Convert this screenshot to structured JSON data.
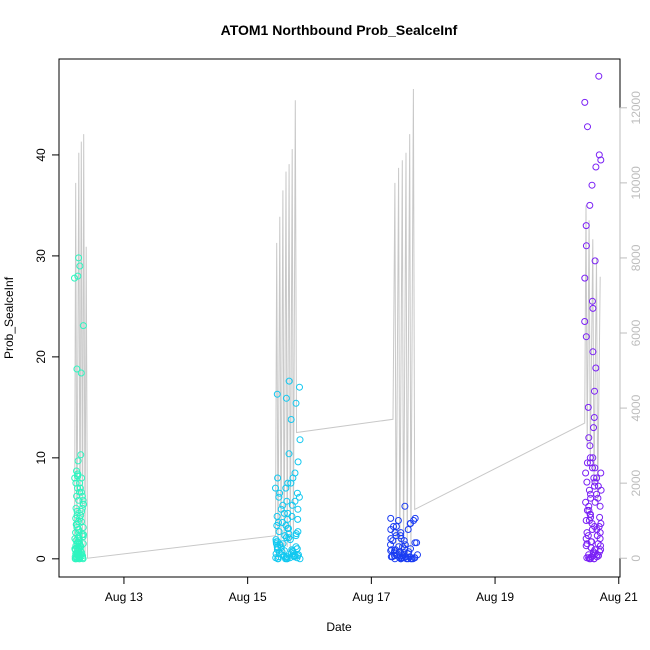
{
  "chart_data": {
    "type": "scatter",
    "title": "ATOM1 Northbound Prob_SealceInf",
    "xlabel": "Date",
    "ylabel": "Prob_SealceInf",
    "x_ticks": [
      {
        "day": 13,
        "label": "Aug 13"
      },
      {
        "day": 15,
        "label": "Aug 15"
      },
      {
        "day": 17,
        "label": "Aug 17"
      },
      {
        "day": 19,
        "label": "Aug 19"
      },
      {
        "day": 21,
        "label": "Aug 21"
      }
    ],
    "xlim_days": [
      11.95,
      21.02
    ],
    "ylim": [
      -1.8,
      49.5
    ],
    "y_ticks": [
      0,
      10,
      20,
      30,
      40
    ],
    "y2_ticks": [
      0,
      2000,
      4000,
      6000,
      8000,
      10000,
      12000
    ],
    "y2lim": [
      -500,
      13300
    ],
    "grid": false,
    "colors": {
      "group1": "#2ff5c0",
      "group2": "#12c8f0",
      "group3": "#1a3cf2",
      "group4": "#7a20f5",
      "secondary_line": "#c8c8c8"
    },
    "series": [
      {
        "x_start_day": 12.2,
        "x_end_day": 12.35,
        "low_values": [
          0,
          0,
          0,
          0.1,
          0.1,
          0.2,
          0.2,
          0.3,
          0.4,
          0.5,
          0.5,
          0.6,
          0.8,
          0.9,
          1.0,
          1.1,
          1.2,
          1.3,
          1.5,
          1.6,
          1.8,
          2.0,
          2.2,
          2.4,
          2.6,
          2.9,
          3.1,
          3.4,
          3.7,
          4.0,
          4.3,
          4.7,
          5.0,
          5.4,
          5.8,
          6.2,
          6.6,
          7.0,
          7.5,
          8.0,
          8.2,
          8.4
        ],
        "high_values": [
          8.7,
          9.7,
          10.3,
          18.4,
          18.8,
          23.1,
          27.8,
          28.0,
          29.0,
          29.8
        ]
      },
      {
        "x_start_day": 15.45,
        "x_end_day": 15.85,
        "low_values": [
          0,
          0,
          0,
          0.1,
          0.1,
          0.2,
          0.2,
          0.3,
          0.3,
          0.4,
          0.5,
          0.6,
          0.7,
          0.8,
          0.9,
          1.0,
          1.1,
          1.2,
          1.4,
          1.5,
          1.7,
          1.9,
          2.1,
          2.3,
          2.5,
          2.7,
          3.0,
          3.3,
          3.6,
          3.9,
          4.2,
          4.5,
          4.9,
          5.3,
          5.7,
          6.1,
          6.5,
          7.0,
          7.5,
          8.0
        ],
        "high_values": [
          8.5,
          9.6,
          10.4,
          11.8,
          13.8,
          15.4,
          15.9,
          16.3,
          17.0,
          17.6
        ]
      },
      {
        "x_start_day": 17.3,
        "x_end_day": 17.75,
        "low_values": [
          0,
          0,
          0,
          0,
          0.1,
          0.1,
          0.1,
          0.2,
          0.2,
          0.3,
          0.3,
          0.4,
          0.5,
          0.6,
          0.7,
          0.8,
          0.9,
          1.0,
          1.2,
          1.4,
          1.6,
          1.8,
          2.0,
          2.3,
          2.6,
          2.9,
          3.2,
          3.5,
          3.8,
          4.0
        ],
        "high_values": [
          5.2
        ]
      },
      {
        "x_start_day": 20.45,
        "x_end_day": 20.72,
        "low_values": [
          0,
          0,
          0.1,
          0.2,
          0.3,
          0.4,
          0.5,
          0.7,
          0.9,
          1.1,
          1.3,
          1.5,
          1.7,
          2.0,
          2.3,
          2.6,
          2.9,
          3.2,
          3.5,
          3.8,
          4.1,
          4.4,
          4.8,
          5.2,
          5.6,
          6.0,
          6.4,
          6.8,
          7.2,
          7.6,
          8.0,
          8.5,
          9.0,
          9.5,
          10.0
        ],
        "high_values": [
          11.2,
          12.0,
          13.0,
          14.0,
          15.0,
          16.6,
          18.9,
          20.5,
          22.0,
          23.5,
          24.8,
          25.5,
          27.8,
          29.5,
          31.0,
          33.0,
          35.0,
          37.0,
          38.8,
          39.5,
          40.0,
          42.8,
          45.2,
          47.8
        ]
      }
    ],
    "secondary_series": [
      {
        "day": 12.2,
        "value": 0
      },
      {
        "day": 12.22,
        "value": 10000
      },
      {
        "day": 12.24,
        "value": 0
      },
      {
        "day": 12.27,
        "value": 10800
      },
      {
        "day": 12.29,
        "value": 0
      },
      {
        "day": 12.31,
        "value": 11100
      },
      {
        "day": 12.33,
        "value": 200
      },
      {
        "day": 12.35,
        "value": 11300
      },
      {
        "day": 12.37,
        "value": 0
      },
      {
        "day": 12.39,
        "value": 8300
      },
      {
        "day": 12.41,
        "value": 0
      },
      {
        "day": 15.45,
        "value": 600
      },
      {
        "day": 15.47,
        "value": 8400
      },
      {
        "day": 15.49,
        "value": 0
      },
      {
        "day": 15.52,
        "value": 9100
      },
      {
        "day": 15.54,
        "value": 300
      },
      {
        "day": 15.57,
        "value": 9800
      },
      {
        "day": 15.59,
        "value": 0
      },
      {
        "day": 15.62,
        "value": 10300
      },
      {
        "day": 15.64,
        "value": 300
      },
      {
        "day": 15.67,
        "value": 10500
      },
      {
        "day": 15.69,
        "value": 0
      },
      {
        "day": 15.72,
        "value": 10900
      },
      {
        "day": 15.74,
        "value": 500
      },
      {
        "day": 15.77,
        "value": 12200
      },
      {
        "day": 15.79,
        "value": 3350
      },
      {
        "day": 17.35,
        "value": 3700
      },
      {
        "day": 17.38,
        "value": 10000
      },
      {
        "day": 17.4,
        "value": 0
      },
      {
        "day": 17.44,
        "value": 10400
      },
      {
        "day": 17.46,
        "value": 0
      },
      {
        "day": 17.5,
        "value": 10600
      },
      {
        "day": 17.52,
        "value": 0
      },
      {
        "day": 17.56,
        "value": 10800
      },
      {
        "day": 17.58,
        "value": 0
      },
      {
        "day": 17.62,
        "value": 11300
      },
      {
        "day": 17.64,
        "value": 0
      },
      {
        "day": 17.68,
        "value": 12500
      },
      {
        "day": 17.7,
        "value": 1300
      },
      {
        "day": 20.45,
        "value": 3600
      },
      {
        "day": 20.47,
        "value": 9400
      },
      {
        "day": 20.49,
        "value": 3000
      },
      {
        "day": 20.52,
        "value": 9000
      },
      {
        "day": 20.54,
        "value": 2500
      },
      {
        "day": 20.58,
        "value": 8500
      },
      {
        "day": 20.6,
        "value": 2000
      },
      {
        "day": 20.64,
        "value": 8000
      },
      {
        "day": 20.66,
        "value": 1500
      },
      {
        "day": 20.7,
        "value": 7500
      }
    ]
  }
}
